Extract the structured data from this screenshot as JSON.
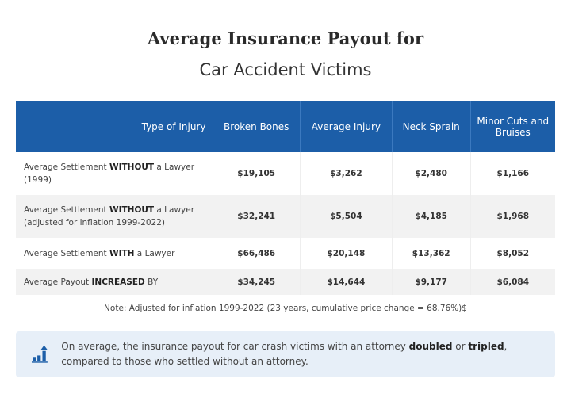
{
  "title": "Average Insurance Payout for",
  "subtitle": "Car Accident Victims",
  "chart_data": {
    "type": "table",
    "columns": [
      "Type of Injury",
      "Broken Bones",
      "Average Injury",
      "Neck Sprain",
      "Minor Cuts and Bruises"
    ],
    "rows": [
      {
        "label": {
          "pre": "Average Settlement ",
          "bold": "WITHOUT",
          "post": " a Lawyer (1999)"
        },
        "values": [
          "$19,105",
          "$3,262",
          "$2,480",
          "$1,166"
        ]
      },
      {
        "label": {
          "pre": "Average Settlement ",
          "bold": "WITHOUT",
          "post": " a Lawyer (adjusted for inflation 1999-2022)"
        },
        "values": [
          "$32,241",
          "$5,504",
          "$4,185",
          "$1,968"
        ]
      },
      {
        "label": {
          "pre": "Average Settlement ",
          "bold": "WITH",
          "post": " a Lawyer"
        },
        "values": [
          "$66,486",
          "$20,148",
          "$13,362",
          "$8,052"
        ]
      },
      {
        "label": {
          "pre": "Average Payout ",
          "bold": "INCREASED",
          "post": " BY"
        },
        "values": [
          "$34,245",
          "$14,644",
          "$9,177",
          "$6,084"
        ]
      }
    ],
    "header_color": "#1c5ea8"
  },
  "note": "Note: Adjusted for inflation 1999-2022 (23 years, cumulative price change = 68.76%)$",
  "callout": {
    "icon": "bar-chart-up-arrow-icon",
    "pre": "On average, the insurance payout for car crash victims with an attorney ",
    "bold1": "doubled",
    "mid": " or ",
    "bold2": "tripled",
    "post": ", compared to those who settled without an attorney."
  }
}
